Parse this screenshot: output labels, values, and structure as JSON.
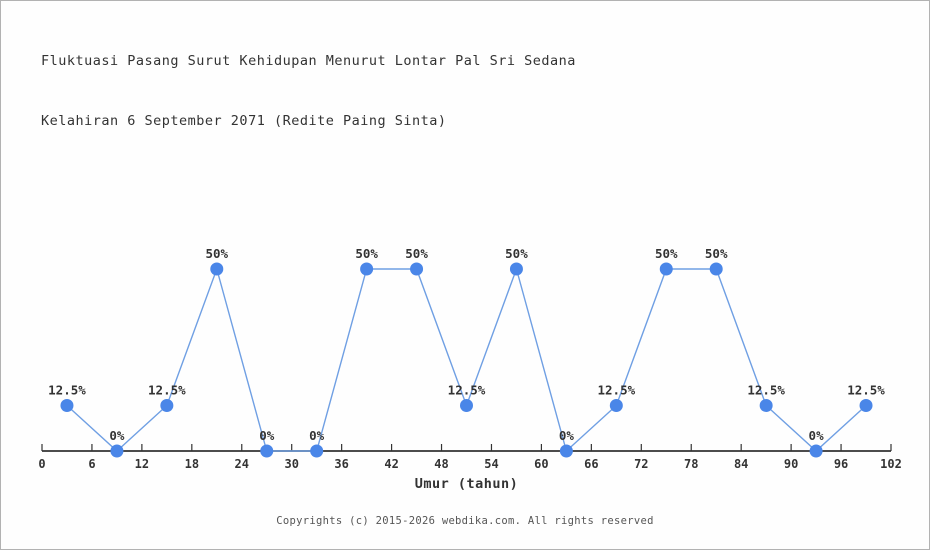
{
  "header": {
    "title_line1": "Fluktuasi Pasang Surut Kehidupan Menurut Lontar Pal Sri Sedana",
    "title_line2": "Kelahiran 6 September 2071 (Redite Paing Sinta)"
  },
  "chart_data": {
    "type": "line",
    "title": "Fluktuasi Pasang Surut Kehidupan Menurut Lontar Pal Sri Sedana Kelahiran 6 September 2071 (Redite Paing Sinta)",
    "x": [
      3,
      9,
      15,
      21,
      27,
      33,
      39,
      45,
      51,
      57,
      63,
      69,
      75,
      81,
      87,
      93,
      99
    ],
    "values": [
      12.5,
      0,
      12.5,
      50,
      0,
      0,
      50,
      50,
      12.5,
      50,
      0,
      12.5,
      50,
      50,
      12.5,
      0,
      12.5
    ],
    "point_labels": [
      "12.5%",
      "0%",
      "12.5%",
      "50%",
      "0%",
      "0%",
      "50%",
      "50%",
      "12.5%",
      "50%",
      "0%",
      "12.5%",
      "50%",
      "50%",
      "12.5%",
      "0%",
      "12.5%"
    ],
    "xlabel": "Umur (tahun)",
    "ylabel": "",
    "x_ticks": [
      0,
      6,
      12,
      18,
      24,
      30,
      36,
      42,
      48,
      54,
      60,
      66,
      72,
      78,
      84,
      90,
      96,
      102
    ],
    "xlim": [
      0,
      102
    ],
    "ylim": [
      0,
      62.5
    ],
    "grid": false,
    "legend": false,
    "line_color": "#6f9fe3",
    "marker_color": "#4a86e8",
    "axis_color": "#333333",
    "label_color": "#333333"
  },
  "footer": {
    "copyright": "Copyrights (c) 2015-2026 webdika.com. All rights reserved"
  }
}
